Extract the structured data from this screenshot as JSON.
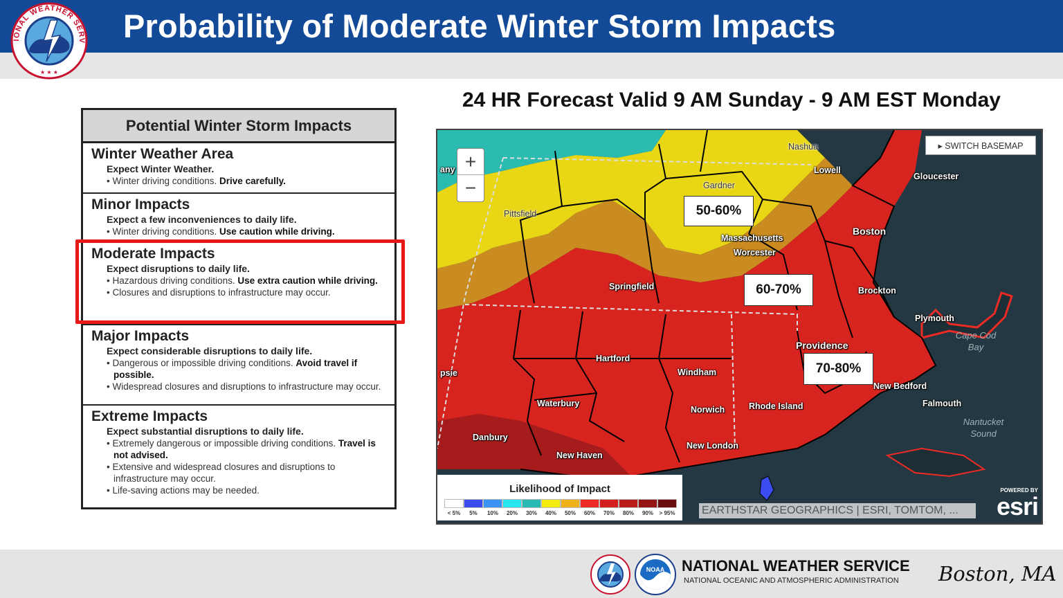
{
  "header": {
    "title": "Probability of Moderate Winter Storm Impacts",
    "logo_text": "NATIONAL WEATHER SERVICE"
  },
  "subtitle": "24 HR Forecast Valid 9 AM Sunday - 9 AM EST Monday",
  "impacts_table": {
    "heading": "Potential Winter Storm Impacts",
    "levels": [
      {
        "title": "Winter Weather Area",
        "expect": "Expect Winter Weather.",
        "lines": [
          {
            "text": "• Winter driving conditions. ",
            "bold": "Drive carefully."
          }
        ]
      },
      {
        "title": "Minor Impacts",
        "expect": "Expect a few inconveniences to daily life.",
        "lines": [
          {
            "text": "• Winter driving conditions. ",
            "bold": "Use caution while driving."
          }
        ]
      },
      {
        "title": "Moderate Impacts",
        "expect": "Expect disruptions to daily life.",
        "lines": [
          {
            "text": "• Hazardous driving conditions. ",
            "bold": "Use extra caution while driving."
          },
          {
            "text": "• Closures and disruptions to infrastructure may occur.",
            "bold": ""
          }
        ]
      },
      {
        "title": "Major Impacts",
        "expect": "Expect considerable disruptions to daily life.",
        "lines": [
          {
            "text": "• Dangerous or impossible driving conditions. ",
            "bold": "Avoid travel if possible."
          },
          {
            "text": "• Widespread closures and disruptions to infrastructure may occur.",
            "bold": ""
          }
        ]
      },
      {
        "title": "Extreme Impacts",
        "expect": "Expect substantial disruptions to daily life.",
        "lines": [
          {
            "text": "• Extremely dangerous or impossible driving conditions. ",
            "bold": "Travel is not advised."
          },
          {
            "text": "• Extensive and widespread closures and disruptions to infrastructure may occur.",
            "bold": ""
          },
          {
            "text": "• Life-saving actions may be needed.",
            "bold": ""
          }
        ]
      }
    ],
    "highlighted_level": "Moderate Impacts",
    "highlight_color": "#e81818"
  },
  "map": {
    "zoom_in": "+",
    "zoom_out": "−",
    "switch_basemap": "▸ SWITCH BASEMAP",
    "probability_labels": [
      "50-60%",
      "60-70%",
      "70-80%"
    ],
    "cities": {
      "nashua": "Nashua",
      "lowell": "Lowell",
      "gloucester": "Gloucester",
      "gardner": "Gardner",
      "pittsfield": "Pittsfield",
      "boston": "Boston",
      "massachusetts": "Massachusetts",
      "worcester": "Worcester",
      "springfield": "Springfield",
      "brockton": "Brockton",
      "plymouth": "Plymouth",
      "providence": "Providence",
      "hartford": "Hartford",
      "windham": "Windham",
      "new_bedford": "New Bedford",
      "waterbury": "Waterbury",
      "rhode_island": "Rhode Island",
      "falmouth": "Falmouth",
      "norwich": "Norwich",
      "danbury": "Danbury",
      "new_london": "New London",
      "new_haven": "New Haven",
      "any": "any",
      "psie": "psie"
    },
    "water": {
      "cape_cod_bay": "Cape Cod\nBay",
      "nantucket_sound": "Nantucket\nSound"
    },
    "attribution": "EARTHSTAR GEOGRAPHICS | ESRI, TOMTOM, ...",
    "esri_powered": "POWERED BY",
    "esri_logo": "esri"
  },
  "legend": {
    "title": "Likelihood of Impact",
    "bins": [
      {
        "label": "< 5%",
        "color": "#ffffff"
      },
      {
        "label": "5%",
        "color": "#3b4cf0"
      },
      {
        "label": "10%",
        "color": "#3b93f5"
      },
      {
        "label": "20%",
        "color": "#26e6ef"
      },
      {
        "label": "30%",
        "color": "#2ab9b0"
      },
      {
        "label": "40%",
        "color": "#f3ec10"
      },
      {
        "label": "50%",
        "color": "#f0b21a"
      },
      {
        "label": "60%",
        "color": "#ee2a24"
      },
      {
        "label": "70%",
        "color": "#d41f1f"
      },
      {
        "label": "80%",
        "color": "#b91a1a"
      },
      {
        "label": "90%",
        "color": "#941414"
      },
      {
        "label": "> 95%",
        "color": "#6d0c0c"
      }
    ]
  },
  "footer": {
    "org": "NATIONAL WEATHER SERVICE",
    "sub": "NATIONAL OCEANIC AND ATMOSPHERIC ADMINISTRATION",
    "office": "Boston, MA",
    "noaa_text": "NOAA"
  }
}
